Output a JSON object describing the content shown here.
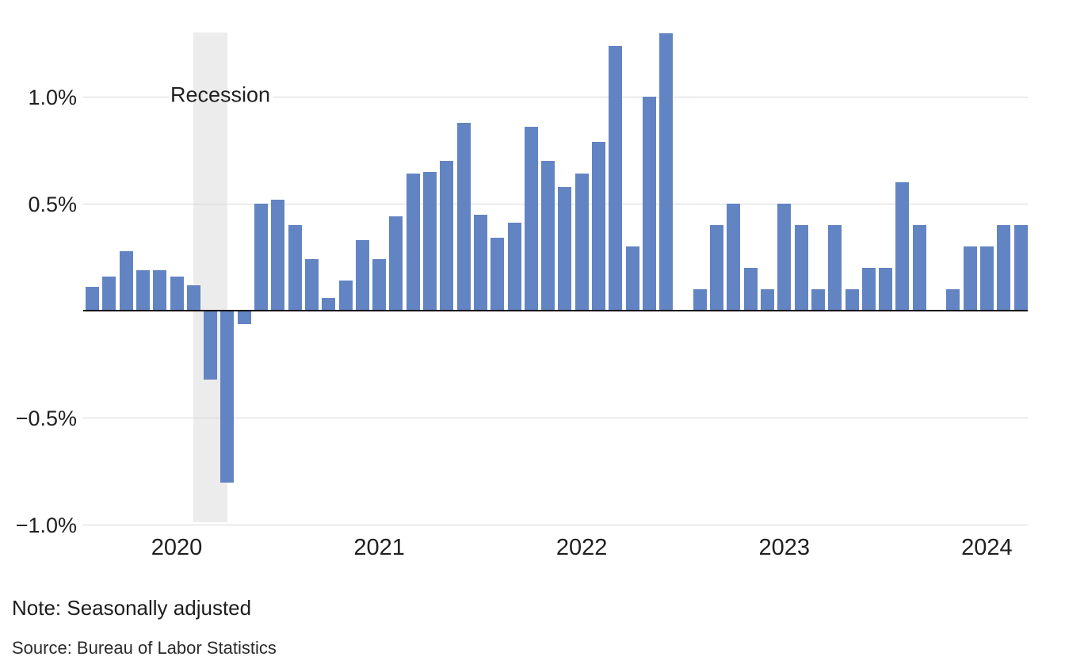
{
  "chart_data": {
    "type": "bar",
    "title": "",
    "unit": "percent_change_month_over_month",
    "bar_color": "#6284c2",
    "grid": true,
    "ylim": [
      -1.05,
      1.31
    ],
    "x": [
      "Aug 2019",
      "Sep 2019",
      "Oct 2019",
      "Nov 2019",
      "Dec 2019",
      "Jan 2020",
      "Feb 2020",
      "Mar 2020",
      "Apr 2020",
      "May 2020",
      "Jun 2020",
      "Jul 2020",
      "Aug 2020",
      "Sep 2020",
      "Oct 2020",
      "Nov 2020",
      "Dec 2020",
      "Jan 2021",
      "Feb 2021",
      "Mar 2021",
      "Apr 2021",
      "May 2021",
      "Jun 2021",
      "Jul 2021",
      "Aug 2021",
      "Sep 2021",
      "Oct 2021",
      "Nov 2021",
      "Dec 2021",
      "Jan 2022",
      "Feb 2022",
      "Mar 2022",
      "Apr 2022",
      "May 2022",
      "Jun 2022",
      "Jul 2022",
      "Aug 2022",
      "Sep 2022",
      "Oct 2022",
      "Nov 2022",
      "Dec 2022",
      "Jan 2023",
      "Feb 2023",
      "Mar 2023",
      "Apr 2023",
      "May 2023",
      "Jun 2023",
      "Jul 2023",
      "Aug 2023",
      "Sep 2023",
      "Oct 2023",
      "Nov 2023",
      "Dec 2023",
      "Jan 2024",
      "Feb 2024",
      "Mar 2024"
    ],
    "values": [
      0.11,
      0.16,
      0.28,
      0.19,
      0.19,
      0.16,
      0.12,
      -0.32,
      -0.8,
      -0.06,
      0.5,
      0.52,
      0.4,
      0.24,
      0.06,
      0.14,
      0.33,
      0.24,
      0.44,
      0.64,
      0.65,
      0.7,
      0.88,
      0.45,
      0.34,
      0.41,
      0.86,
      0.7,
      0.58,
      0.64,
      0.79,
      1.24,
      0.3,
      1.0,
      1.3,
      0.0,
      0.1,
      0.4,
      0.5,
      0.2,
      0.1,
      0.5,
      0.4,
      0.1,
      0.4,
      0.1,
      0.2,
      0.2,
      0.6,
      0.4,
      0.0,
      0.1,
      0.3,
      0.3,
      0.4,
      0.4
    ],
    "zero_value_months": [
      "Jul 2022",
      "Oct 2023"
    ],
    "y_ticks": [
      {
        "value": 1.0,
        "label": "1.0%"
      },
      {
        "value": 0.5,
        "label": "0.5%"
      },
      {
        "value": -0.5,
        "label": "−0.5%"
      },
      {
        "value": -1.0,
        "label": "−1.0%"
      }
    ],
    "x_ticks": [
      {
        "month": "Jan 2020",
        "label": "2020"
      },
      {
        "month": "Jan 2021",
        "label": "2021"
      },
      {
        "month": "Jan 2022",
        "label": "2022"
      },
      {
        "month": "Jan 2023",
        "label": "2023"
      },
      {
        "month": "Jan 2024",
        "label": "2024"
      }
    ],
    "annotations": [
      {
        "type": "band",
        "label": "Recession",
        "from_month": "Feb 2020",
        "to_month": "Apr 2020",
        "band_color": "#ececec"
      }
    ]
  },
  "notes": {
    "note": "Note: Seasonally adjusted",
    "source": "Source: Bureau of Labor Statistics"
  },
  "colors": {
    "bar": "#6284c2",
    "gridline": "#d8d8d8",
    "axis": "#111111",
    "recession_band": "#ececec",
    "text": "#1f1f1f"
  }
}
